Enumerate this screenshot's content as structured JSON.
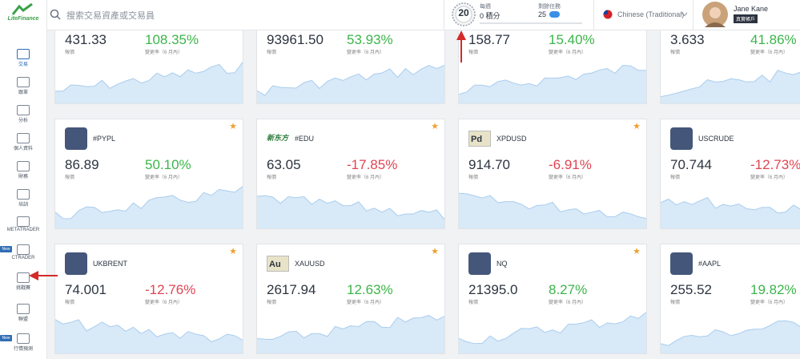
{
  "sidebar": {
    "logo": "LiteFinance",
    "items": [
      {
        "label": "交易"
      },
      {
        "label": "跟單"
      },
      {
        "label": "分析"
      },
      {
        "label": "個人資料"
      },
      {
        "label": "財務"
      },
      {
        "label": "培訓"
      },
      {
        "label": "METATRADER"
      },
      {
        "label": "CTRADER",
        "badge": "New"
      },
      {
        "label": "挑戰賽"
      },
      {
        "label": "聯盟"
      },
      {
        "label": "行情預測",
        "badge": "New"
      }
    ]
  },
  "topbar": {
    "search_placeholder": "搜索交易資產或交易員",
    "level": "20",
    "weekly_label": "每週",
    "points": "0 積分",
    "tasks_label": "剩餘任務",
    "tasks": "25",
    "language": "Chinese (Traditional)",
    "user_name": "Jane Kane",
    "account_type": "真實帳戶"
  },
  "cards": [
    {
      "price": "431.33",
      "price_label": "報價",
      "change": "108.35%",
      "change_label": "變更率（6 月內）"
    },
    {
      "price": "93961.50",
      "price_label": "報價",
      "change": "53.93%",
      "change_label": "變更率（6 月內）"
    },
    {
      "price": "158.77",
      "price_label": "報價",
      "change": "15.40%",
      "change_label": "變更率（6 月內）"
    },
    {
      "price": "3.633",
      "price_label": "報價",
      "change": "41.86%",
      "change_label": "變更率（6 月內）"
    },
    {
      "symbol": "#PYPL",
      "price": "86.89",
      "price_label": "報價",
      "change": "50.10%",
      "change_label": "變更率（6 月內）"
    },
    {
      "symbol": "#EDU",
      "logo_text": "新东方",
      "price": "63.05",
      "price_label": "報價",
      "change": "-17.85%",
      "change_label": "變更率（6 月內）"
    },
    {
      "symbol": "XPDUSD",
      "logo_text": "Pd",
      "price": "914.70",
      "price_label": "報價",
      "change": "-6.91%",
      "change_label": "變更率（6 月內）"
    },
    {
      "symbol": "USCRUDE",
      "price": "70.744",
      "price_label": "報價",
      "change": "-12.73%",
      "change_label": "變更率（6 月內）"
    },
    {
      "symbol": "UKBRENT",
      "price": "74.001",
      "price_label": "報價",
      "change": "-12.76%",
      "change_label": "變更率（6 月內）"
    },
    {
      "symbol": "XAUUSD",
      "logo_text": "Au",
      "price": "2617.94",
      "price_label": "報價",
      "change": "12.63%",
      "change_label": "變更率（6 月內）"
    },
    {
      "symbol": "NQ",
      "price": "21395.0",
      "price_label": "報價",
      "change": "8.27%",
      "change_label": "變更率（6 月內）"
    },
    {
      "symbol": "#AAPL",
      "price": "255.52",
      "price_label": "報價",
      "change": "19.82%",
      "change_label": "變更率（6 月內）"
    }
  ]
}
